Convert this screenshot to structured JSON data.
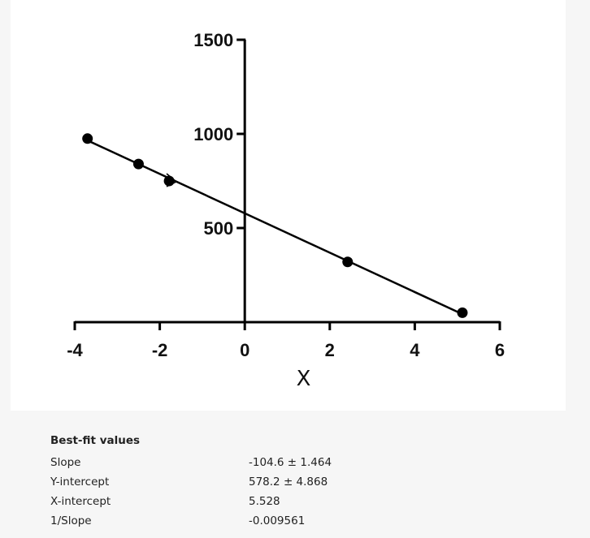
{
  "chart_data": {
    "type": "scatter",
    "title": "",
    "xlabel": "X",
    "ylabel": "",
    "xlim": [
      -4,
      6
    ],
    "ylim": [
      0,
      1500
    ],
    "x_ticks": [
      -4,
      -2,
      0,
      2,
      4,
      6
    ],
    "y_ticks": [
      500,
      1000,
      1500
    ],
    "grid": false,
    "series": [
      {
        "x": [
          -3.7,
          -2.5,
          -1.78,
          2.42,
          5.12
        ],
        "y": [
          975,
          840,
          750,
          320,
          50
        ],
        "marker": "circle",
        "color": "#000000"
      }
    ],
    "fit_line": {
      "slope": -104.6,
      "intercept": 578.2,
      "x_range": [
        -3.7,
        5.12
      ],
      "color": "#000000"
    }
  },
  "results": {
    "heading": "Best-fit values",
    "rows": [
      {
        "label": "Slope",
        "value": "-104.6 ± 1.464"
      },
      {
        "label": "Y-intercept",
        "value": "578.2 ± 4.868"
      },
      {
        "label": "X-intercept",
        "value": "5.528"
      },
      {
        "label": "1/Slope",
        "value": "-0.009561"
      }
    ]
  }
}
